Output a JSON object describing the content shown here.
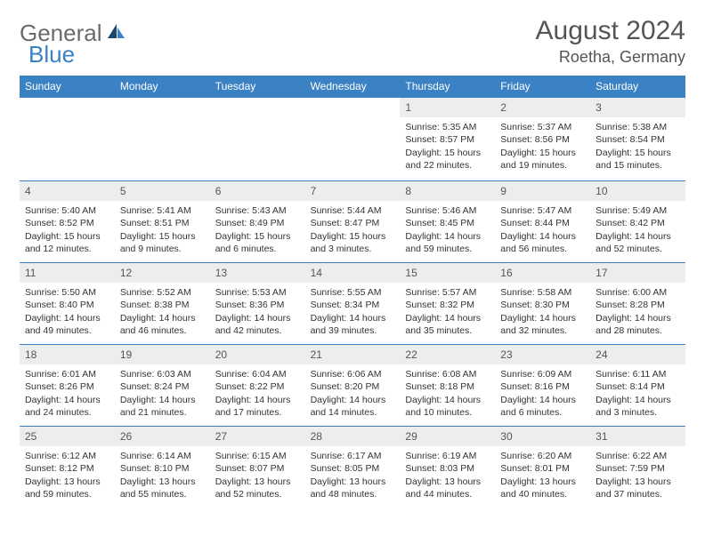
{
  "logo": {
    "text1": "General",
    "text2": "Blue"
  },
  "title": "August 2024",
  "location": "Roetha, Germany",
  "colors": {
    "header_bg": "#3b82c4",
    "header_text": "#ffffff",
    "daynum_bg": "#eceded",
    "border": "#3b82c4",
    "logo_gray": "#6b6b6b",
    "logo_blue": "#3b82c4"
  },
  "dow": [
    "Sunday",
    "Monday",
    "Tuesday",
    "Wednesday",
    "Thursday",
    "Friday",
    "Saturday"
  ],
  "weeks": [
    [
      {
        "n": "",
        "sr": "",
        "ss": "",
        "dl": ""
      },
      {
        "n": "",
        "sr": "",
        "ss": "",
        "dl": ""
      },
      {
        "n": "",
        "sr": "",
        "ss": "",
        "dl": ""
      },
      {
        "n": "",
        "sr": "",
        "ss": "",
        "dl": ""
      },
      {
        "n": "1",
        "sr": "Sunrise: 5:35 AM",
        "ss": "Sunset: 8:57 PM",
        "dl": "Daylight: 15 hours and 22 minutes."
      },
      {
        "n": "2",
        "sr": "Sunrise: 5:37 AM",
        "ss": "Sunset: 8:56 PM",
        "dl": "Daylight: 15 hours and 19 minutes."
      },
      {
        "n": "3",
        "sr": "Sunrise: 5:38 AM",
        "ss": "Sunset: 8:54 PM",
        "dl": "Daylight: 15 hours and 15 minutes."
      }
    ],
    [
      {
        "n": "4",
        "sr": "Sunrise: 5:40 AM",
        "ss": "Sunset: 8:52 PM",
        "dl": "Daylight: 15 hours and 12 minutes."
      },
      {
        "n": "5",
        "sr": "Sunrise: 5:41 AM",
        "ss": "Sunset: 8:51 PM",
        "dl": "Daylight: 15 hours and 9 minutes."
      },
      {
        "n": "6",
        "sr": "Sunrise: 5:43 AM",
        "ss": "Sunset: 8:49 PM",
        "dl": "Daylight: 15 hours and 6 minutes."
      },
      {
        "n": "7",
        "sr": "Sunrise: 5:44 AM",
        "ss": "Sunset: 8:47 PM",
        "dl": "Daylight: 15 hours and 3 minutes."
      },
      {
        "n": "8",
        "sr": "Sunrise: 5:46 AM",
        "ss": "Sunset: 8:45 PM",
        "dl": "Daylight: 14 hours and 59 minutes."
      },
      {
        "n": "9",
        "sr": "Sunrise: 5:47 AM",
        "ss": "Sunset: 8:44 PM",
        "dl": "Daylight: 14 hours and 56 minutes."
      },
      {
        "n": "10",
        "sr": "Sunrise: 5:49 AM",
        "ss": "Sunset: 8:42 PM",
        "dl": "Daylight: 14 hours and 52 minutes."
      }
    ],
    [
      {
        "n": "11",
        "sr": "Sunrise: 5:50 AM",
        "ss": "Sunset: 8:40 PM",
        "dl": "Daylight: 14 hours and 49 minutes."
      },
      {
        "n": "12",
        "sr": "Sunrise: 5:52 AM",
        "ss": "Sunset: 8:38 PM",
        "dl": "Daylight: 14 hours and 46 minutes."
      },
      {
        "n": "13",
        "sr": "Sunrise: 5:53 AM",
        "ss": "Sunset: 8:36 PM",
        "dl": "Daylight: 14 hours and 42 minutes."
      },
      {
        "n": "14",
        "sr": "Sunrise: 5:55 AM",
        "ss": "Sunset: 8:34 PM",
        "dl": "Daylight: 14 hours and 39 minutes."
      },
      {
        "n": "15",
        "sr": "Sunrise: 5:57 AM",
        "ss": "Sunset: 8:32 PM",
        "dl": "Daylight: 14 hours and 35 minutes."
      },
      {
        "n": "16",
        "sr": "Sunrise: 5:58 AM",
        "ss": "Sunset: 8:30 PM",
        "dl": "Daylight: 14 hours and 32 minutes."
      },
      {
        "n": "17",
        "sr": "Sunrise: 6:00 AM",
        "ss": "Sunset: 8:28 PM",
        "dl": "Daylight: 14 hours and 28 minutes."
      }
    ],
    [
      {
        "n": "18",
        "sr": "Sunrise: 6:01 AM",
        "ss": "Sunset: 8:26 PM",
        "dl": "Daylight: 14 hours and 24 minutes."
      },
      {
        "n": "19",
        "sr": "Sunrise: 6:03 AM",
        "ss": "Sunset: 8:24 PM",
        "dl": "Daylight: 14 hours and 21 minutes."
      },
      {
        "n": "20",
        "sr": "Sunrise: 6:04 AM",
        "ss": "Sunset: 8:22 PM",
        "dl": "Daylight: 14 hours and 17 minutes."
      },
      {
        "n": "21",
        "sr": "Sunrise: 6:06 AM",
        "ss": "Sunset: 8:20 PM",
        "dl": "Daylight: 14 hours and 14 minutes."
      },
      {
        "n": "22",
        "sr": "Sunrise: 6:08 AM",
        "ss": "Sunset: 8:18 PM",
        "dl": "Daylight: 14 hours and 10 minutes."
      },
      {
        "n": "23",
        "sr": "Sunrise: 6:09 AM",
        "ss": "Sunset: 8:16 PM",
        "dl": "Daylight: 14 hours and 6 minutes."
      },
      {
        "n": "24",
        "sr": "Sunrise: 6:11 AM",
        "ss": "Sunset: 8:14 PM",
        "dl": "Daylight: 14 hours and 3 minutes."
      }
    ],
    [
      {
        "n": "25",
        "sr": "Sunrise: 6:12 AM",
        "ss": "Sunset: 8:12 PM",
        "dl": "Daylight: 13 hours and 59 minutes."
      },
      {
        "n": "26",
        "sr": "Sunrise: 6:14 AM",
        "ss": "Sunset: 8:10 PM",
        "dl": "Daylight: 13 hours and 55 minutes."
      },
      {
        "n": "27",
        "sr": "Sunrise: 6:15 AM",
        "ss": "Sunset: 8:07 PM",
        "dl": "Daylight: 13 hours and 52 minutes."
      },
      {
        "n": "28",
        "sr": "Sunrise: 6:17 AM",
        "ss": "Sunset: 8:05 PM",
        "dl": "Daylight: 13 hours and 48 minutes."
      },
      {
        "n": "29",
        "sr": "Sunrise: 6:19 AM",
        "ss": "Sunset: 8:03 PM",
        "dl": "Daylight: 13 hours and 44 minutes."
      },
      {
        "n": "30",
        "sr": "Sunrise: 6:20 AM",
        "ss": "Sunset: 8:01 PM",
        "dl": "Daylight: 13 hours and 40 minutes."
      },
      {
        "n": "31",
        "sr": "Sunrise: 6:22 AM",
        "ss": "Sunset: 7:59 PM",
        "dl": "Daylight: 13 hours and 37 minutes."
      }
    ]
  ]
}
